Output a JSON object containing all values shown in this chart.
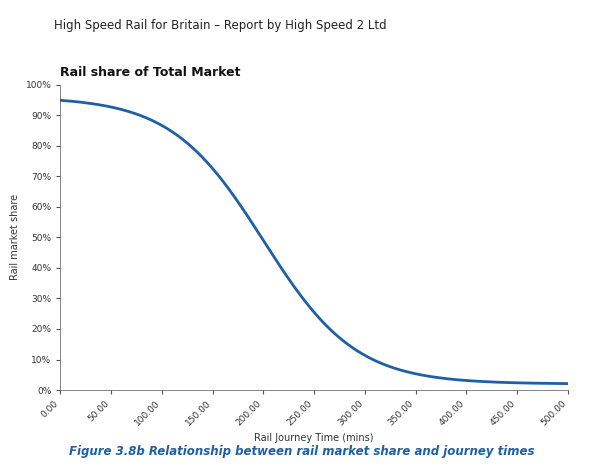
{
  "title": "Rail share of Total Market",
  "xlabel": "Rail Journey Time (mins)",
  "ylabel": "Rail market share",
  "figure_caption": "Figure 3.8b Relationship between rail market share and journey times",
  "header_text": "High Speed Rail for Britain – Report by High Speed 2 Ltd",
  "x_min": 0,
  "x_max": 500,
  "x_tick_step": 50,
  "y_min": 0,
  "y_max": 1.0,
  "y_tick_step": 0.1,
  "curve_color": "#1F5FA6",
  "curve_linewidth": 2.0,
  "sigmoid_midpoint": 200,
  "sigmoid_steepness": 0.022,
  "sigmoid_max": 0.96,
  "sigmoid_min": 0.02,
  "background_color": "#ffffff",
  "axis_color": "#333333",
  "caption_color": "#1F5FA6",
  "header_color": "#1F5FA6",
  "title_fontsize": 9,
  "axis_label_fontsize": 7,
  "tick_fontsize": 6.5,
  "caption_fontsize": 8.5
}
